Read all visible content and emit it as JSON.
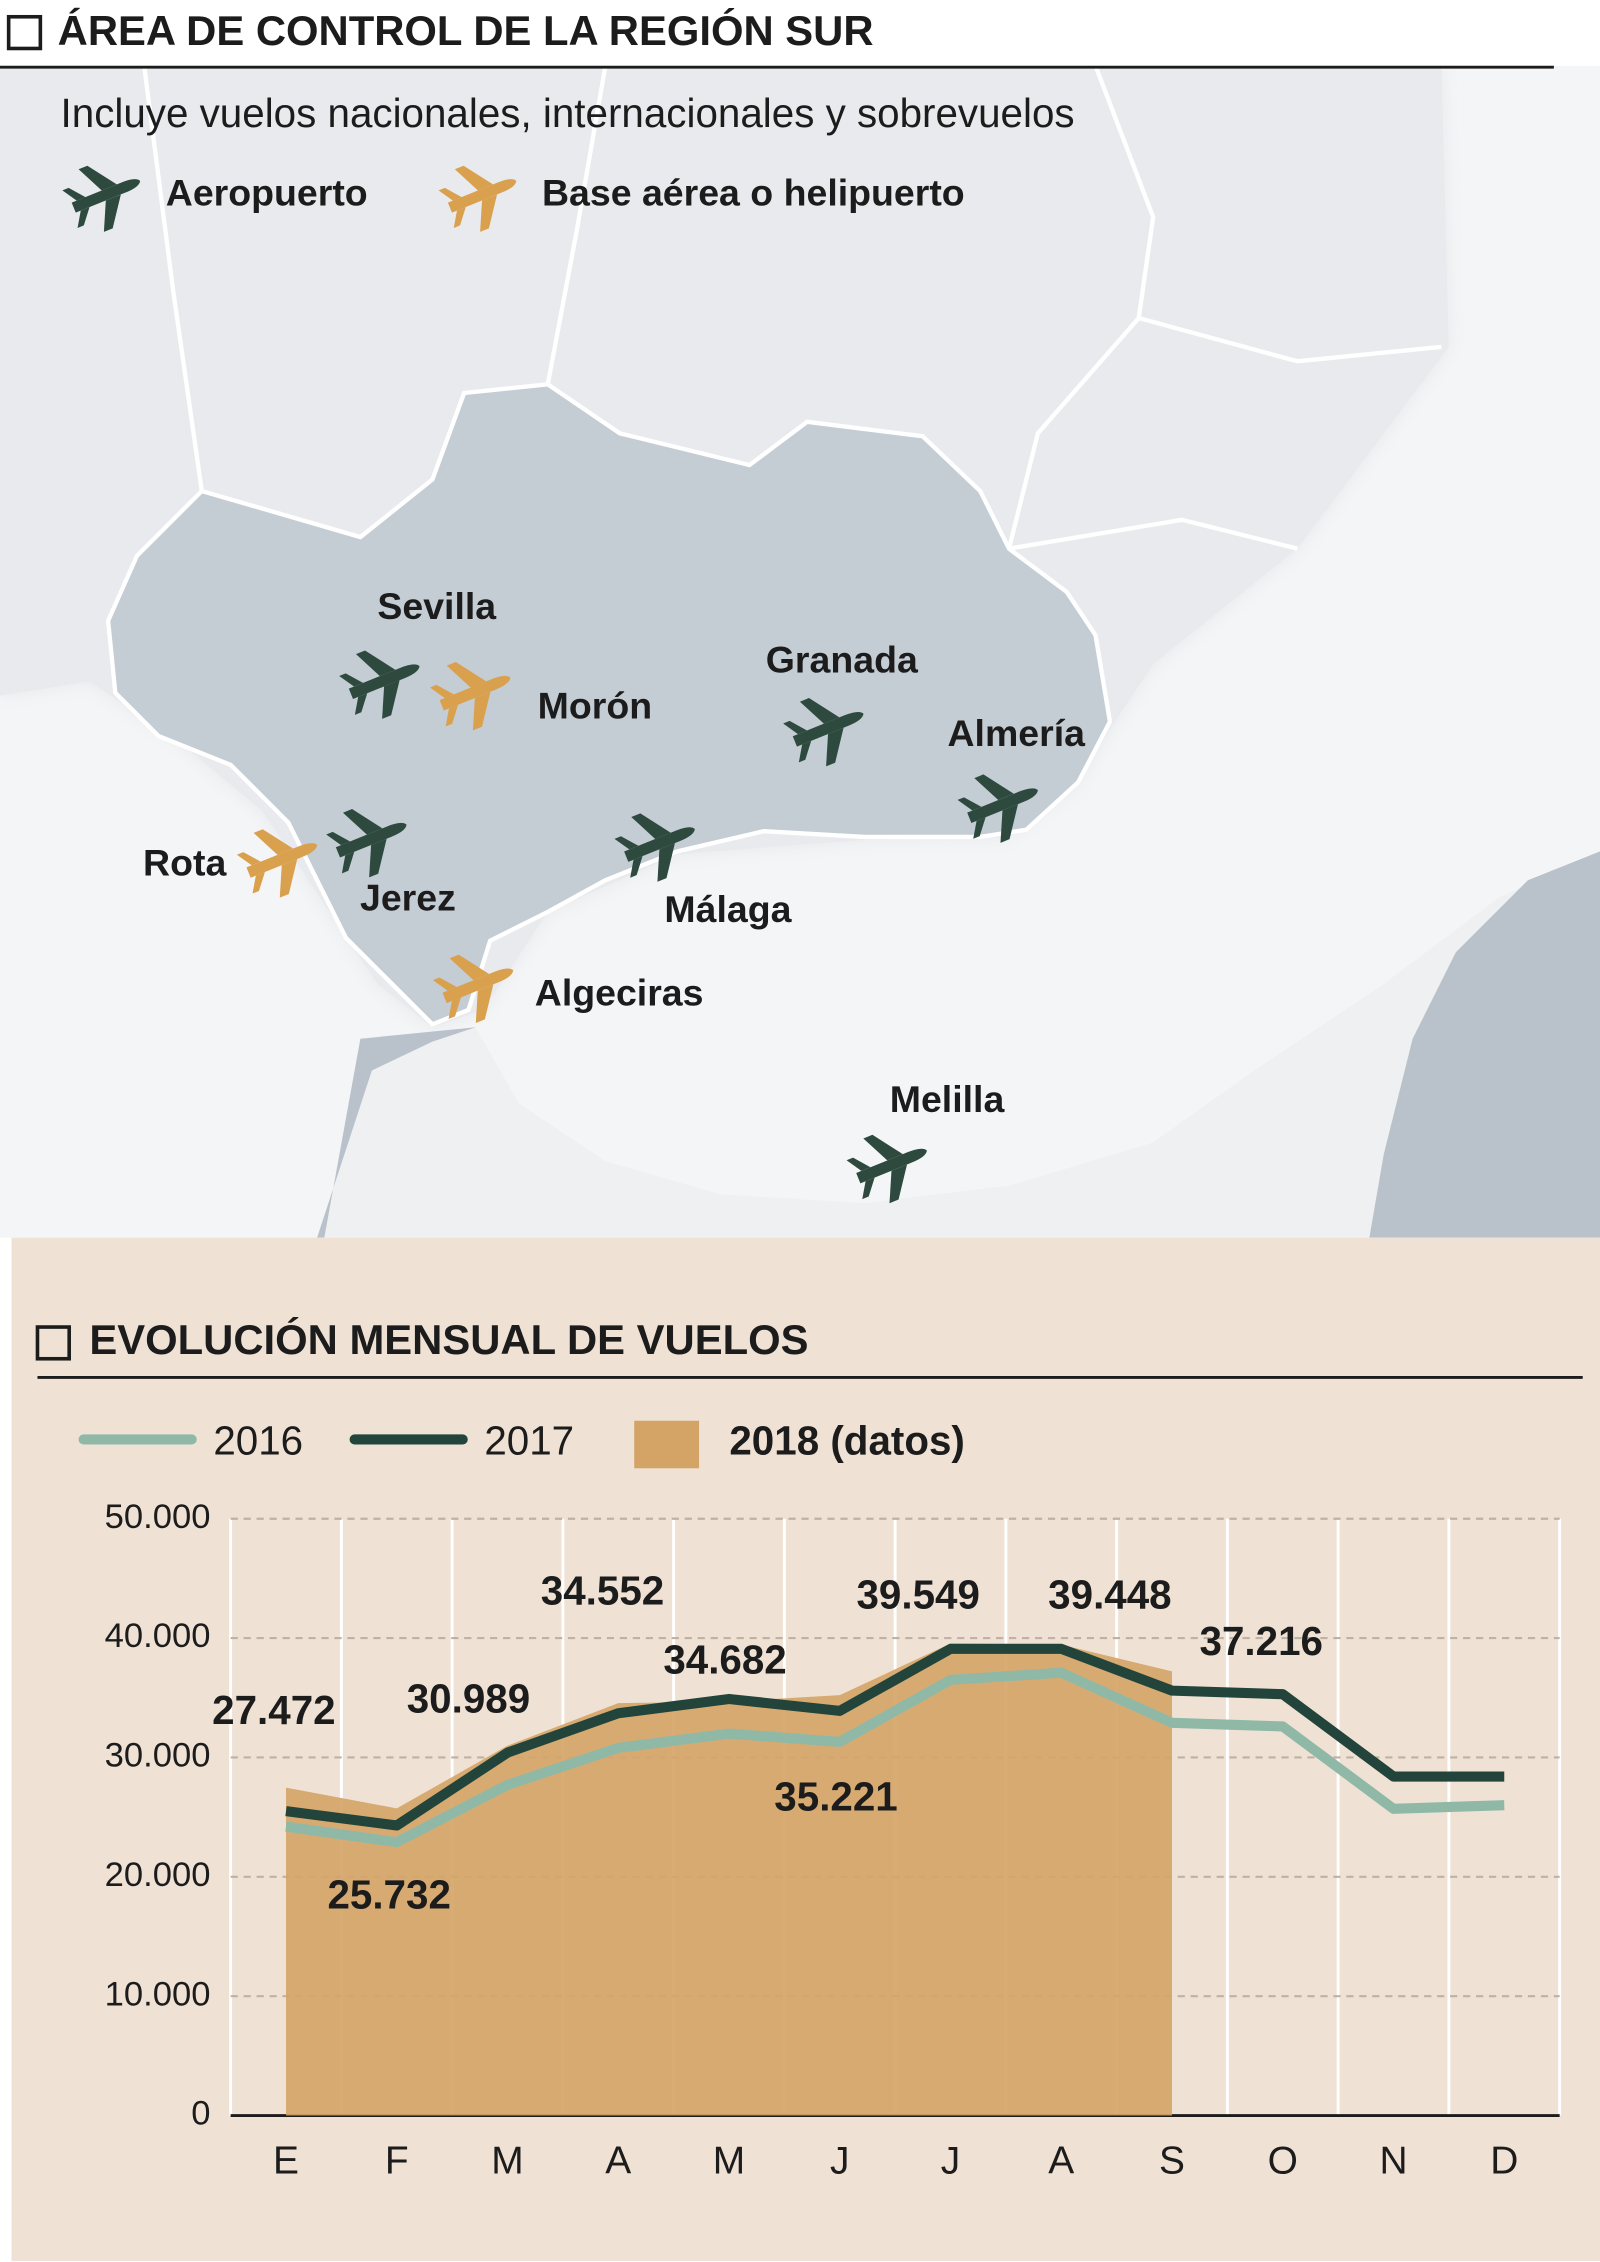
{
  "map": {
    "title": "ÁREA DE CONTROL DE LA REGIÓN SUR",
    "subtitle": "Incluye vuelos nacionales, internacionales y sobrevuelos",
    "legend": [
      {
        "label": "Aeropuerto",
        "color": "#2e4a3f",
        "places": [
          "Sevilla",
          "Granada",
          "Almería",
          "Jerez",
          "Málaga",
          "Melilla"
        ]
      },
      {
        "label": "Base aérea o helipuerto",
        "color": "#d9a04e",
        "places": [
          "Morón",
          "Rota",
          "Algeciras"
        ]
      }
    ]
  },
  "chart_data": {
    "type": "line",
    "title": "EVOLUCIÓN MENSUAL DE VUELOS",
    "categories": [
      "E",
      "F",
      "M",
      "A",
      "M",
      "J",
      "J",
      "A",
      "S",
      "O",
      "N",
      "D"
    ],
    "ylim": [
      0,
      50000
    ],
    "yticks": [
      0,
      {
        "value": 10000,
        "label": "10.000"
      },
      {
        "value": 20000,
        "label": "20.000"
      },
      {
        "value": 30000,
        "label": "30.000"
      },
      {
        "value": 40000,
        "label": "40.000"
      },
      {
        "value": 50000,
        "label": "50.000"
      }
    ],
    "grid": true,
    "series": [
      {
        "name": "2016",
        "color": "#8fb9a6",
        "values": [
          24200,
          22900,
          27700,
          30800,
          32000,
          31300,
          36500,
          37100,
          32900,
          32600,
          25700,
          26000
        ]
      },
      {
        "name": "2017",
        "color": "#22443a",
        "values": [
          25500,
          24300,
          30400,
          33700,
          34900,
          33900,
          39100,
          39100,
          35600,
          35300,
          28400,
          28400
        ]
      },
      {
        "name": "2018 (datos)",
        "type": "area",
        "color": "#d4a466",
        "values": [
          27472,
          25732,
          30989,
          34552,
          34682,
          35221,
          39549,
          39448,
          37216,
          null,
          null,
          null
        ],
        "value_labels": [
          "27.472",
          "25.732",
          "30.989",
          "34.552",
          "34.682",
          "35.221",
          "39.549",
          "39.448",
          "37.216",
          null,
          null,
          null
        ]
      }
    ]
  }
}
